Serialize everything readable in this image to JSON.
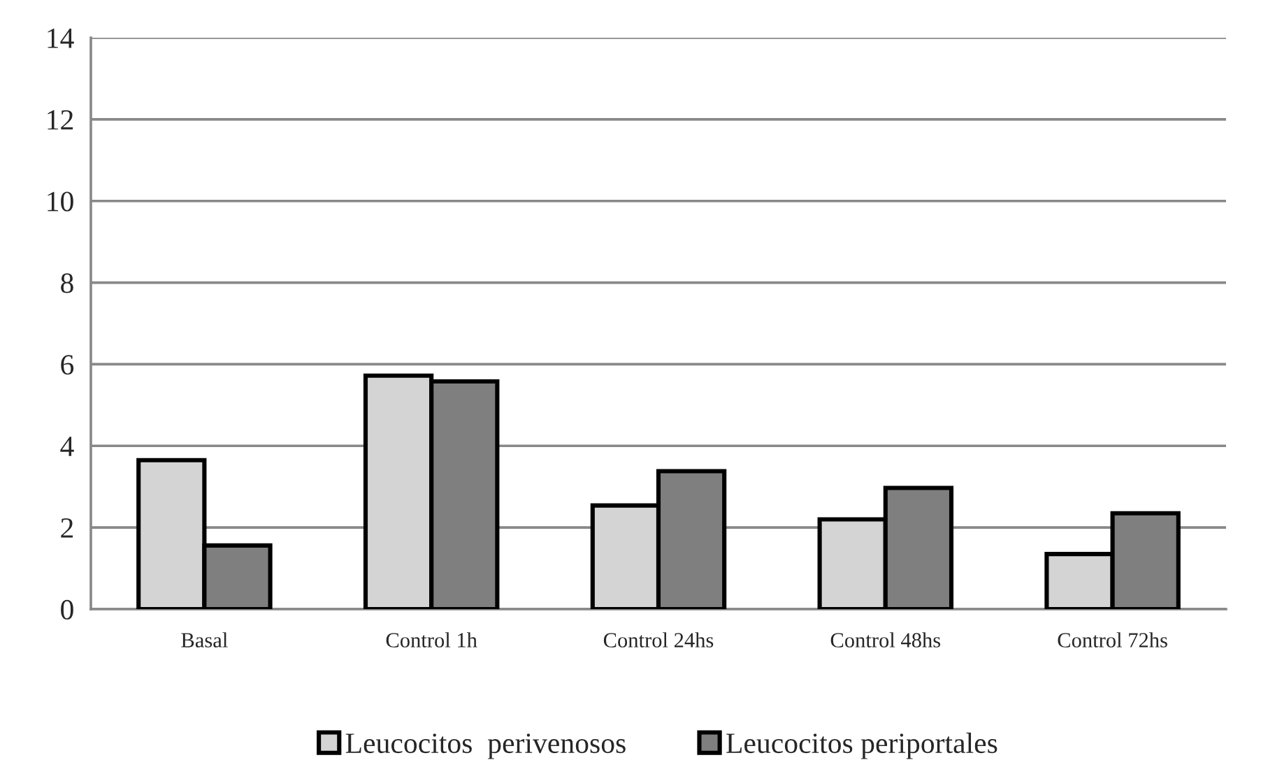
{
  "chart_data": {
    "type": "bar",
    "categories": [
      "Basal",
      "Control 1h",
      "Control 24hs",
      "Control 48hs",
      "Control 72hs"
    ],
    "series": [
      {
        "name": "Leucocitos  perivenosos",
        "color": "#d4d4d4",
        "values": [
          3.65,
          5.72,
          2.54,
          2.2,
          1.35
        ]
      },
      {
        "name": "Leucocitos periportales",
        "color": "#7f7f7f",
        "values": [
          1.56,
          5.58,
          3.38,
          2.97,
          2.35
        ]
      }
    ],
    "ylim": [
      0,
      14
    ],
    "yticks": [
      0,
      2,
      4,
      6,
      8,
      10,
      12,
      14
    ],
    "grid": "y",
    "legend": "bottom"
  }
}
